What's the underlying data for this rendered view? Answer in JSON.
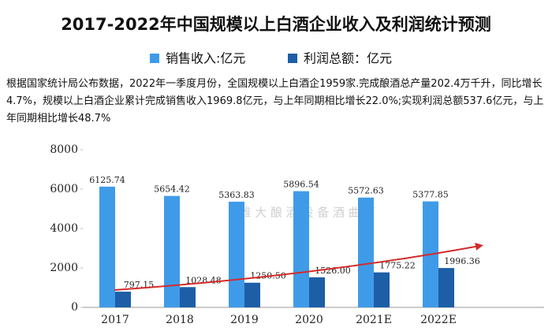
{
  "chart_data": {
    "type": "bar",
    "title": "2017-2022年中国规模以上白酒企业收入及利润统计预测",
    "annotation": "根据国家统计局公布数据，2022年一季度月份，全国规模以上白酒企1959家.完成酿酒总产量202.4万千升，同比增长4.7%，规模以上白酒企业累计完成销售收入1969.8亿元，与上年同期相比增长22.0%;实现利润总额537.6亿元，与上年同期相比增长48.7%",
    "watermark": "雅 大 酿 酒 设 备 酒 曲 厂",
    "categories": [
      "2017",
      "2018",
      "2019",
      "2020",
      "2021E",
      "2022E"
    ],
    "series": [
      {
        "name": "销售收入:亿元",
        "color": "#3f9be8",
        "values": [
          6125.74,
          5654.42,
          5363.83,
          5896.54,
          5572.63,
          5377.85
        ],
        "value_labels": [
          "6125.74",
          "5654.42",
          "5363.83",
          "5896.54",
          "5572.63",
          "5377.85"
        ]
      },
      {
        "name": "利润总额：亿元",
        "color": "#1d5ea6",
        "values": [
          797.15,
          1028.48,
          1250.5,
          1526.0,
          1775.22,
          1996.36
        ],
        "value_labels": [
          "797.15",
          "1028.48",
          "1250.50",
          "1526.00",
          "1775.22",
          "1996.36"
        ]
      }
    ],
    "ylim": [
      0,
      8000
    ],
    "yticks": [
      0,
      2000,
      4000,
      6000,
      8000
    ],
    "grid": false,
    "legend": "top"
  }
}
